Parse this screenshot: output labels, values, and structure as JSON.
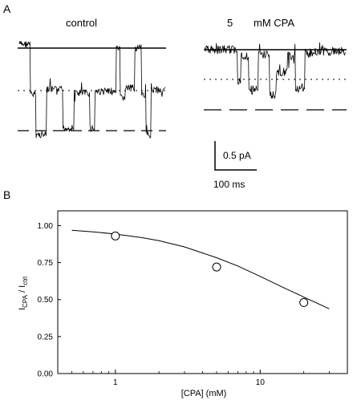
{
  "panels": {
    "a": {
      "letter": "A",
      "control_label": "control",
      "cpa_conc": "5",
      "cpa_unit": "mM CPA",
      "scale_current": "0.5 pA",
      "scale_time": "100 ms"
    },
    "b": {
      "letter": "B"
    }
  },
  "chart_data": {
    "type": "scatter",
    "xscale": "log",
    "xlabel": "[CPA] (mM)",
    "ylabel_main": "I",
    "ylabel_sub1": "CPA",
    "ylabel_mid": " / I",
    "ylabel_sub2": "ctrl",
    "xlim": [
      0.4,
      40
    ],
    "ylim": [
      0,
      1.1
    ],
    "xticks": [
      1,
      10
    ],
    "xtick_labels": [
      "1",
      "10"
    ],
    "yticks": [
      0,
      0.25,
      0.5,
      0.75,
      1.0
    ],
    "ytick_labels": [
      "0.00",
      "0.25",
      "0.50",
      "0.75",
      "1.00"
    ],
    "points": [
      {
        "x": 1,
        "y": 0.93,
        "err": 0.015
      },
      {
        "x": 5,
        "y": 0.72,
        "err": 0.015
      },
      {
        "x": 20,
        "y": 0.48,
        "err": 0.03
      }
    ],
    "fit": {
      "x": [
        0.5,
        0.7,
        1,
        1.5,
        2,
        3,
        5,
        7,
        10,
        15,
        20,
        30
      ],
      "y": [
        0.969,
        0.958,
        0.943,
        0.92,
        0.898,
        0.856,
        0.783,
        0.727,
        0.657,
        0.574,
        0.517,
        0.438
      ]
    },
    "grid": false,
    "legend": "none"
  }
}
